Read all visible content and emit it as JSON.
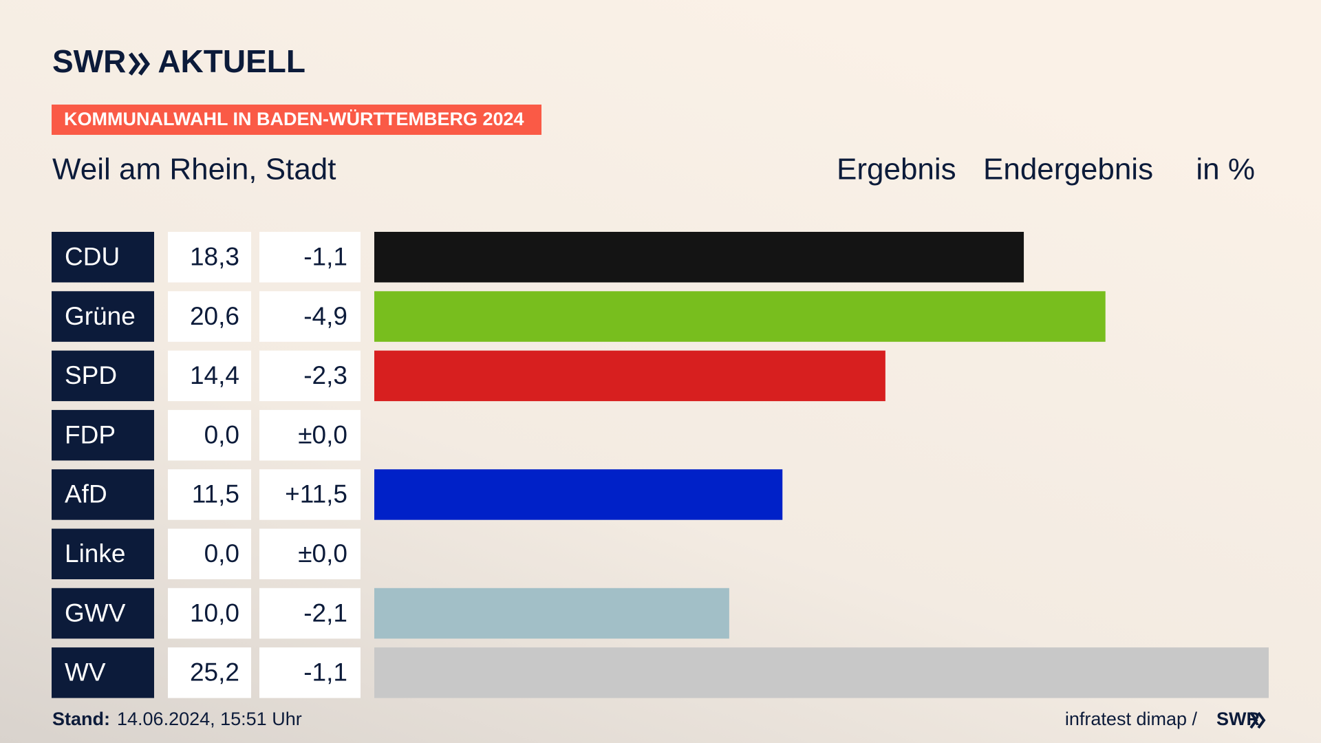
{
  "chart_data": {
    "type": "bar",
    "logo": {
      "brand": "SWR",
      "name": "AKTUELL"
    },
    "banner": "KOMMUNALWAHL IN BADEN-WÜRTTEMBERG 2024",
    "title": "Weil am Rhein, Stadt",
    "headers": [
      "Ergebnis",
      "Endergebnis",
      "in %"
    ],
    "categories": [
      "CDU",
      "Grüne",
      "SPD",
      "FDP",
      "AfD",
      "Linke",
      "GWV",
      "WV"
    ],
    "values": [
      18.3,
      20.6,
      14.4,
      0.0,
      11.5,
      0.0,
      10.0,
      25.2
    ],
    "value_labels": [
      "18,3",
      "20,6",
      "14,4",
      "0,0",
      "11,5",
      "0,0",
      "10,0",
      "25,2"
    ],
    "changes": [
      "-1,1",
      "-4,9",
      "-2,3",
      "±0,0",
      "+11,5",
      "±0,0",
      "-2,1",
      "-1,1"
    ],
    "colors": [
      "#141414",
      "#78be1e",
      "#d71f1f",
      null,
      "#0021c8",
      null,
      "#a2bfc7",
      "#c8c8c8"
    ],
    "footer": {
      "label": "Stand:",
      "date": "14.06.2024, 15:51 Uhr",
      "source": "infratest dimap /",
      "brand": "SWR"
    }
  }
}
